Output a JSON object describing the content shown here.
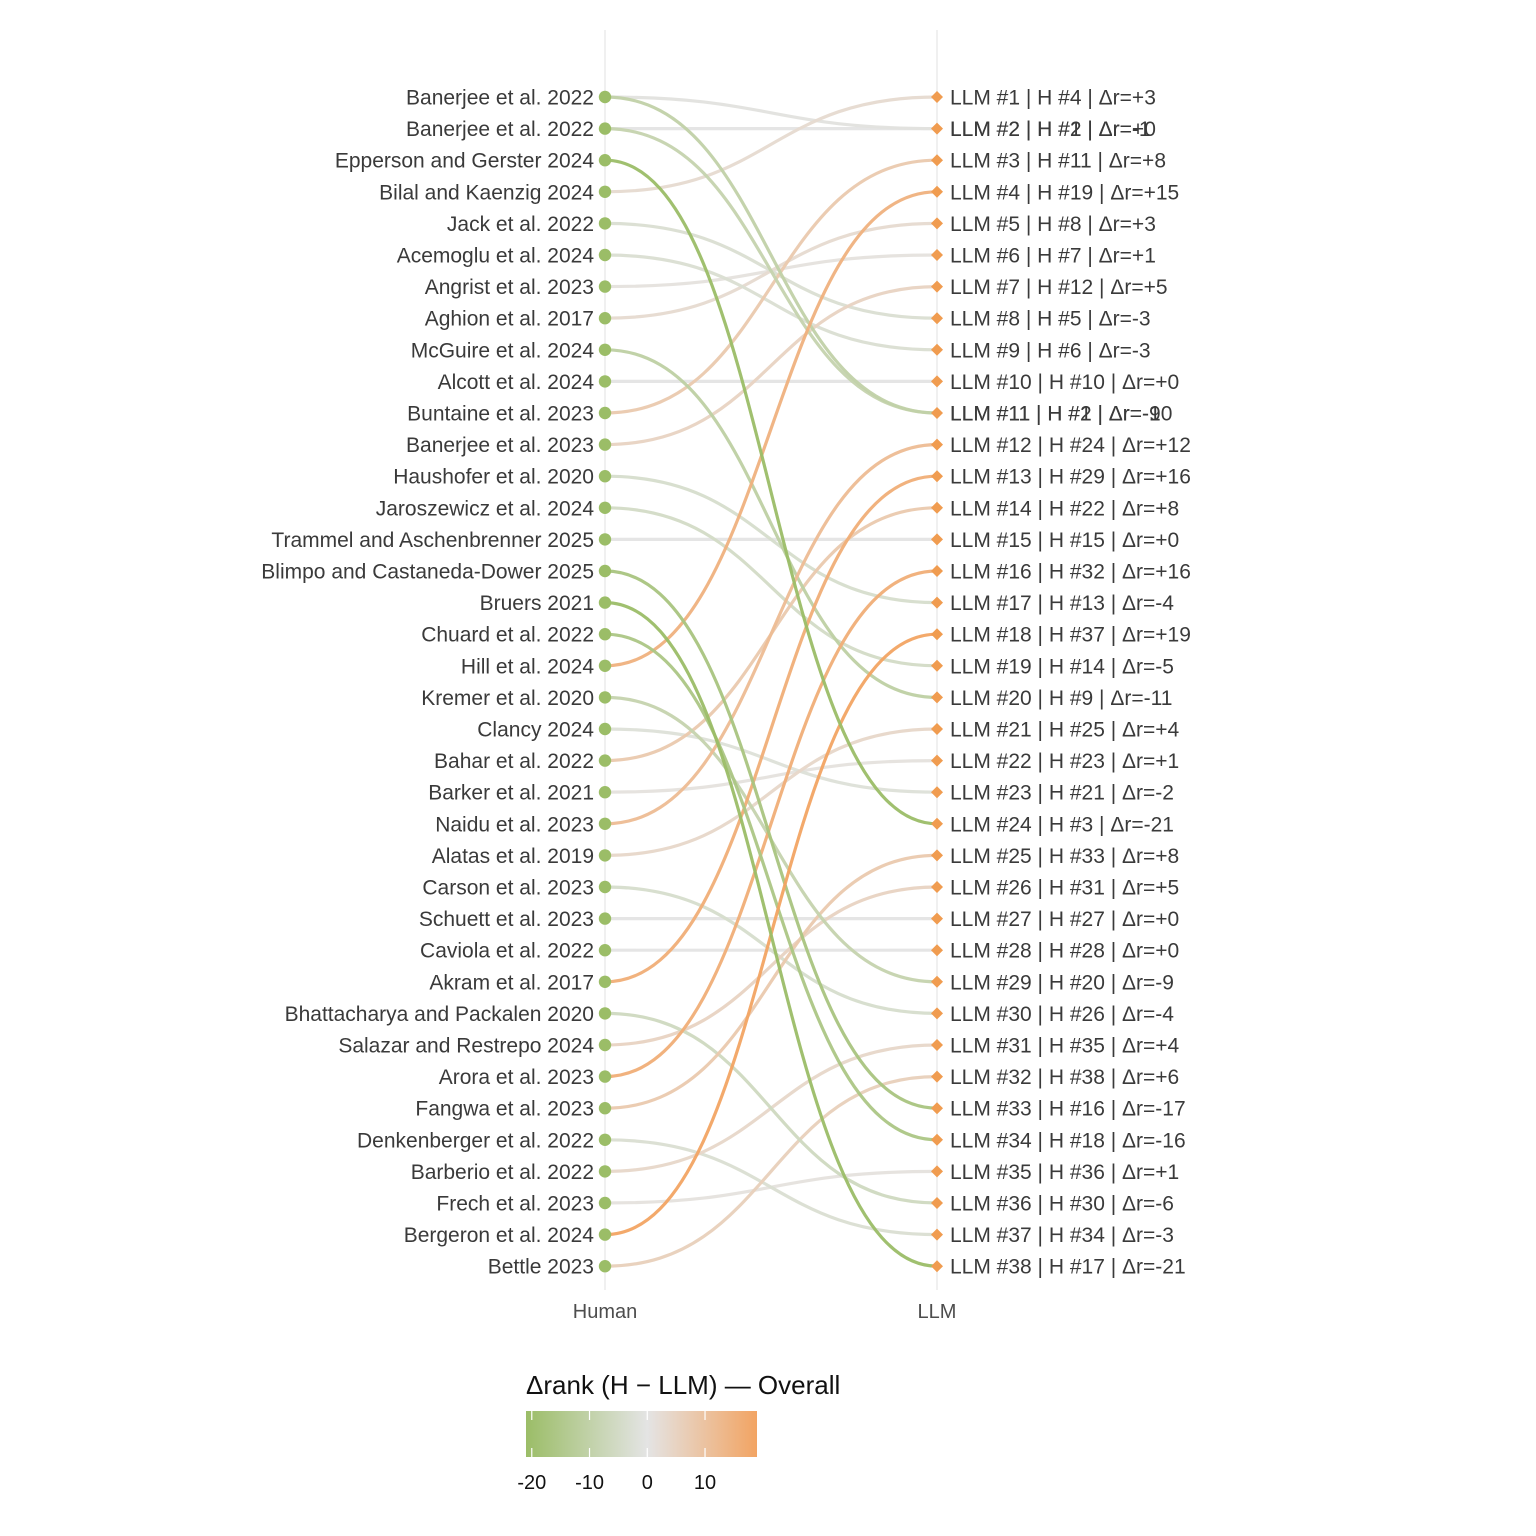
{
  "chart_data": {
    "type": "slope",
    "axis_labels": [
      "Human",
      "LLM"
    ],
    "legend": {
      "title": "Δrank (H − LLM) — Overall",
      "ticks": [
        -20,
        -10,
        0,
        10
      ],
      "tick_labels": [
        "-20",
        "-10",
        "0",
        "10"
      ],
      "range": [
        -21,
        19
      ],
      "colors": {
        "low": "#9bbd67",
        "mid": "#e4e4e4",
        "high": "#f2a463"
      }
    },
    "colors": {
      "human_marker": "#9bbd67",
      "llm_marker": "#f09c50",
      "gridline": "#ebebeb"
    },
    "human_labels": [
      "Banerjee et al. 2022",
      "Banerjee et al. 2022",
      "Epperson and Gerster 2024",
      "Bilal and Kaenzig 2024",
      "Jack et al. 2022",
      "Acemoglu et al. 2024",
      "Angrist et al. 2023",
      "Aghion et al. 2017",
      "McGuire et al. 2024",
      "Alcott et al. 2024",
      "Buntaine et al. 2023",
      "Banerjee et al. 2023",
      "Haushofer et al. 2020",
      "Jaroszewicz et al. 2024",
      "Trammel and Aschenbrenner 2025",
      "Blimpo and Castaneda-Dower 2025",
      "Bruers 2021",
      "Chuard et al. 2022",
      "Hill et al. 2024",
      "Kremer et al. 2020",
      "Clancy 2024",
      "Bahar et al. 2022",
      "Barker et al. 2021",
      "Naidu et al. 2023",
      "Alatas et al. 2019",
      "Carson et al. 2023",
      "Schuett et al. 2023",
      "Caviola et al. 2022",
      "Akram et al. 2017",
      "Bhattacharya and Packalen 2020",
      "Salazar and Restrepo 2024",
      "Arora et al. 2023",
      "Fangwa et al. 2023",
      "Denkenberger et al. 2022",
      "Barberio et al. 2022",
      "Frech et al. 2023",
      "Bergeron et al. 2024",
      "Bettle 2023"
    ],
    "links": [
      {
        "human_rank": 4,
        "llm_rank": 1,
        "delta": 3
      },
      {
        "human_rank": 2,
        "llm_rank": 2,
        "delta": 0
      },
      {
        "human_rank": 1,
        "llm_rank": 2,
        "delta": -1
      },
      {
        "human_rank": 11,
        "llm_rank": 3,
        "delta": 8
      },
      {
        "human_rank": 19,
        "llm_rank": 4,
        "delta": 15
      },
      {
        "human_rank": 8,
        "llm_rank": 5,
        "delta": 3
      },
      {
        "human_rank": 7,
        "llm_rank": 6,
        "delta": 1
      },
      {
        "human_rank": 12,
        "llm_rank": 7,
        "delta": 5
      },
      {
        "human_rank": 5,
        "llm_rank": 8,
        "delta": -3
      },
      {
        "human_rank": 6,
        "llm_rank": 9,
        "delta": -3
      },
      {
        "human_rank": 10,
        "llm_rank": 10,
        "delta": 0
      },
      {
        "human_rank": 2,
        "llm_rank": 11,
        "delta": -9
      },
      {
        "human_rank": 1,
        "llm_rank": 11,
        "delta": -10
      },
      {
        "human_rank": 24,
        "llm_rank": 12,
        "delta": 12
      },
      {
        "human_rank": 29,
        "llm_rank": 13,
        "delta": 16
      },
      {
        "human_rank": 22,
        "llm_rank": 14,
        "delta": 8
      },
      {
        "human_rank": 15,
        "llm_rank": 15,
        "delta": 0
      },
      {
        "human_rank": 32,
        "llm_rank": 16,
        "delta": 16
      },
      {
        "human_rank": 13,
        "llm_rank": 17,
        "delta": -4
      },
      {
        "human_rank": 37,
        "llm_rank": 18,
        "delta": 19
      },
      {
        "human_rank": 14,
        "llm_rank": 19,
        "delta": -5
      },
      {
        "human_rank": 9,
        "llm_rank": 20,
        "delta": -11
      },
      {
        "human_rank": 25,
        "llm_rank": 21,
        "delta": 4
      },
      {
        "human_rank": 23,
        "llm_rank": 22,
        "delta": 1
      },
      {
        "human_rank": 21,
        "llm_rank": 23,
        "delta": -2
      },
      {
        "human_rank": 3,
        "llm_rank": 24,
        "delta": -21
      },
      {
        "human_rank": 33,
        "llm_rank": 25,
        "delta": 8
      },
      {
        "human_rank": 31,
        "llm_rank": 26,
        "delta": 5
      },
      {
        "human_rank": 27,
        "llm_rank": 27,
        "delta": 0
      },
      {
        "human_rank": 28,
        "llm_rank": 28,
        "delta": 0
      },
      {
        "human_rank": 20,
        "llm_rank": 29,
        "delta": -9
      },
      {
        "human_rank": 26,
        "llm_rank": 30,
        "delta": -4
      },
      {
        "human_rank": 35,
        "llm_rank": 31,
        "delta": 4
      },
      {
        "human_rank": 38,
        "llm_rank": 32,
        "delta": 6
      },
      {
        "human_rank": 16,
        "llm_rank": 33,
        "delta": -17
      },
      {
        "human_rank": 18,
        "llm_rank": 34,
        "delta": -16
      },
      {
        "human_rank": 36,
        "llm_rank": 35,
        "delta": 1
      },
      {
        "human_rank": 30,
        "llm_rank": 36,
        "delta": -6
      },
      {
        "human_rank": 34,
        "llm_rank": 37,
        "delta": -3
      },
      {
        "human_rank": 17,
        "llm_rank": 38,
        "delta": -21
      }
    ],
    "llm_labels": [
      {
        "llm_rank": 1,
        "text": "LLM #1 | H #4 | Δr=+3"
      },
      {
        "llm_rank": 2,
        "text": "LLM #2 | H #2 | Δr=+0"
      },
      {
        "llm_rank": 2,
        "text": "LLM #2 | H #1 | Δr=-1"
      },
      {
        "llm_rank": 3,
        "text": "LLM #3 | H #11 | Δr=+8"
      },
      {
        "llm_rank": 4,
        "text": "LLM #4 | H #19 | Δr=+15"
      },
      {
        "llm_rank": 5,
        "text": "LLM #5 | H #8 | Δr=+3"
      },
      {
        "llm_rank": 6,
        "text": "LLM #6 | H #7 | Δr=+1"
      },
      {
        "llm_rank": 7,
        "text": "LLM #7 | H #12 | Δr=+5"
      },
      {
        "llm_rank": 8,
        "text": "LLM #8 | H #5 | Δr=-3"
      },
      {
        "llm_rank": 9,
        "text": "LLM #9 | H #6 | Δr=-3"
      },
      {
        "llm_rank": 10,
        "text": "LLM #10 | H #10 | Δr=+0"
      },
      {
        "llm_rank": 11,
        "text": "LLM #11 | H #2 | Δr=-9"
      },
      {
        "llm_rank": 11,
        "text": "LLM #11 | H #1 | Δr=-10"
      },
      {
        "llm_rank": 12,
        "text": "LLM #12 | H #24 | Δr=+12"
      },
      {
        "llm_rank": 13,
        "text": "LLM #13 | H #29 | Δr=+16"
      },
      {
        "llm_rank": 14,
        "text": "LLM #14 | H #22 | Δr=+8"
      },
      {
        "llm_rank": 15,
        "text": "LLM #15 | H #15 | Δr=+0"
      },
      {
        "llm_rank": 16,
        "text": "LLM #16 | H #32 | Δr=+16"
      },
      {
        "llm_rank": 17,
        "text": "LLM #17 | H #13 | Δr=-4"
      },
      {
        "llm_rank": 18,
        "text": "LLM #18 | H #37 | Δr=+19"
      },
      {
        "llm_rank": 19,
        "text": "LLM #19 | H #14 | Δr=-5"
      },
      {
        "llm_rank": 20,
        "text": "LLM #20 | H #9 | Δr=-11"
      },
      {
        "llm_rank": 21,
        "text": "LLM #21 | H #25 | Δr=+4"
      },
      {
        "llm_rank": 22,
        "text": "LLM #22 | H #23 | Δr=+1"
      },
      {
        "llm_rank": 23,
        "text": "LLM #23 | H #21 | Δr=-2"
      },
      {
        "llm_rank": 24,
        "text": "LLM #24 | H #3 | Δr=-21"
      },
      {
        "llm_rank": 25,
        "text": "LLM #25 | H #33 | Δr=+8"
      },
      {
        "llm_rank": 26,
        "text": "LLM #26 | H #31 | Δr=+5"
      },
      {
        "llm_rank": 27,
        "text": "LLM #27 | H #27 | Δr=+0"
      },
      {
        "llm_rank": 28,
        "text": "LLM #28 | H #28 | Δr=+0"
      },
      {
        "llm_rank": 29,
        "text": "LLM #29 | H #20 | Δr=-9"
      },
      {
        "llm_rank": 30,
        "text": "LLM #30 | H #26 | Δr=-4"
      },
      {
        "llm_rank": 31,
        "text": "LLM #31 | H #35 | Δr=+4"
      },
      {
        "llm_rank": 32,
        "text": "LLM #32 | H #38 | Δr=+6"
      },
      {
        "llm_rank": 33,
        "text": "LLM #33 | H #16 | Δr=-17"
      },
      {
        "llm_rank": 34,
        "text": "LLM #34 | H #18 | Δr=-16"
      },
      {
        "llm_rank": 35,
        "text": "LLM #35 | H #36 | Δr=+1"
      },
      {
        "llm_rank": 36,
        "text": "LLM #36 | H #30 | Δr=-6"
      },
      {
        "llm_rank": 37,
        "text": "LLM #37 | H #34 | Δr=-3"
      },
      {
        "llm_rank": 38,
        "text": "LLM #38 | H #17 | Δr=-21"
      }
    ]
  }
}
